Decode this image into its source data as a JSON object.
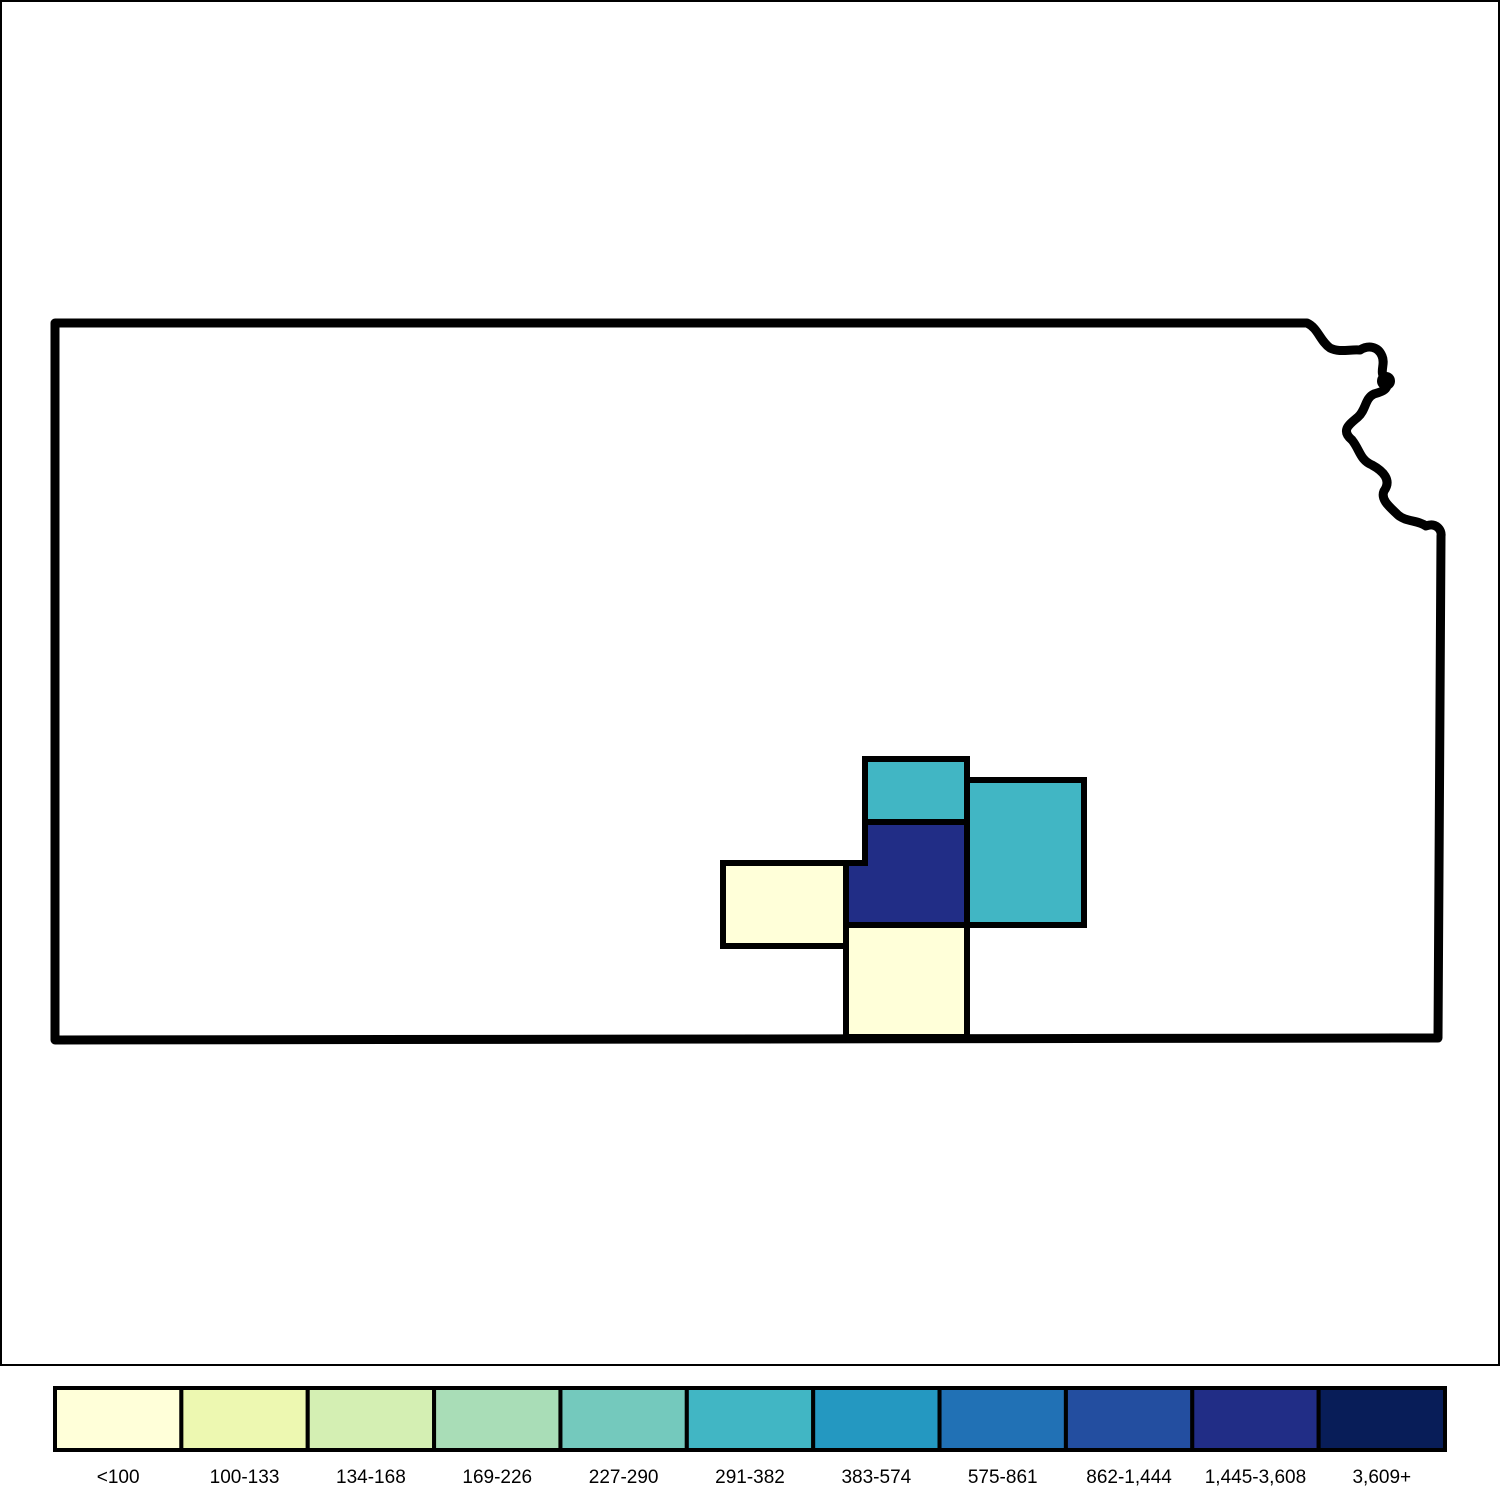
{
  "map": {
    "region": "Kansas",
    "counties": [
      {
        "id": "county-a",
        "bin": 5
      },
      {
        "id": "county-b",
        "bin": 5
      },
      {
        "id": "county-c",
        "bin": 9
      },
      {
        "id": "county-d",
        "bin": 0
      },
      {
        "id": "county-e",
        "bin": 0
      }
    ]
  },
  "legend": {
    "bins": [
      {
        "label": "<100",
        "color": "#ffffd9"
      },
      {
        "label": "100-133",
        "color": "#edf8b1"
      },
      {
        "label": "134-168",
        "color": "#d4efb3"
      },
      {
        "label": "169-226",
        "color": "#a9ddb7"
      },
      {
        "label": "227-290",
        "color": "#74c9bd"
      },
      {
        "label": "291-382",
        "color": "#41b6c4"
      },
      {
        "label": "383-574",
        "color": "#2498c1"
      },
      {
        "label": "575-861",
        "color": "#2171b5"
      },
      {
        "label": "862-1,444",
        "color": "#234ea0"
      },
      {
        "label": "1,445-3,608",
        "color": "#212d86"
      },
      {
        "label": "3,609+",
        "color": "#081d58"
      }
    ]
  }
}
